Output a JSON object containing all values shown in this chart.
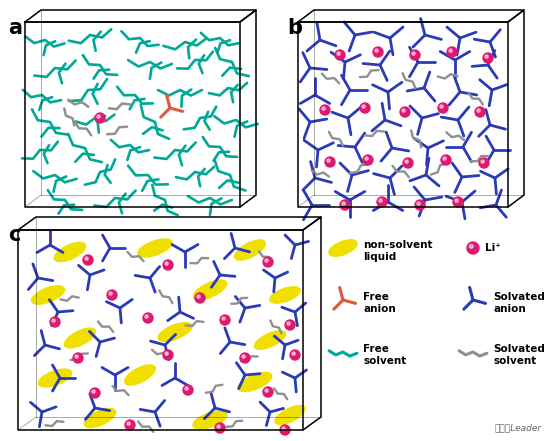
{
  "bg_color": "#ffffff",
  "teal_color": "#00a896",
  "blue_color": "#2b3bb5",
  "red_color": "#e05a3a",
  "pink_color": "#e01870",
  "gray_color": "#909090",
  "yellow_color": "#f0e000",
  "label_a": "a",
  "label_b": "b",
  "label_c": "c",
  "figsize": [
    5.5,
    4.41
  ],
  "dpi": 100
}
